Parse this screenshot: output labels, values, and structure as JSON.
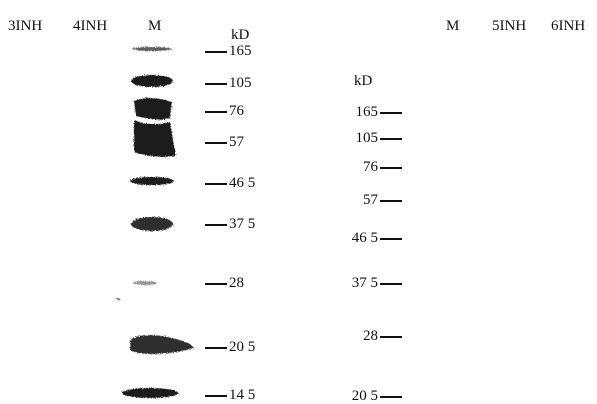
{
  "lane_labels_left": [
    "3INH",
    "4INH",
    "M"
  ],
  "lane_labels_right": [
    "M",
    "5INH",
    "6INH"
  ],
  "left_unit": "kD",
  "left_markers": [
    "165",
    "105",
    "76",
    "57",
    "46 5",
    "37 5",
    "28",
    "20 5",
    "14 5"
  ],
  "right_unit": "kD",
  "right_markers": [
    "165",
    "105",
    "76",
    "57",
    "46 5",
    "37 5",
    "28",
    "20 5"
  ],
  "colors": {
    "band": "#1a1a1a",
    "tick": "#111111",
    "background": "#ffffff"
  }
}
